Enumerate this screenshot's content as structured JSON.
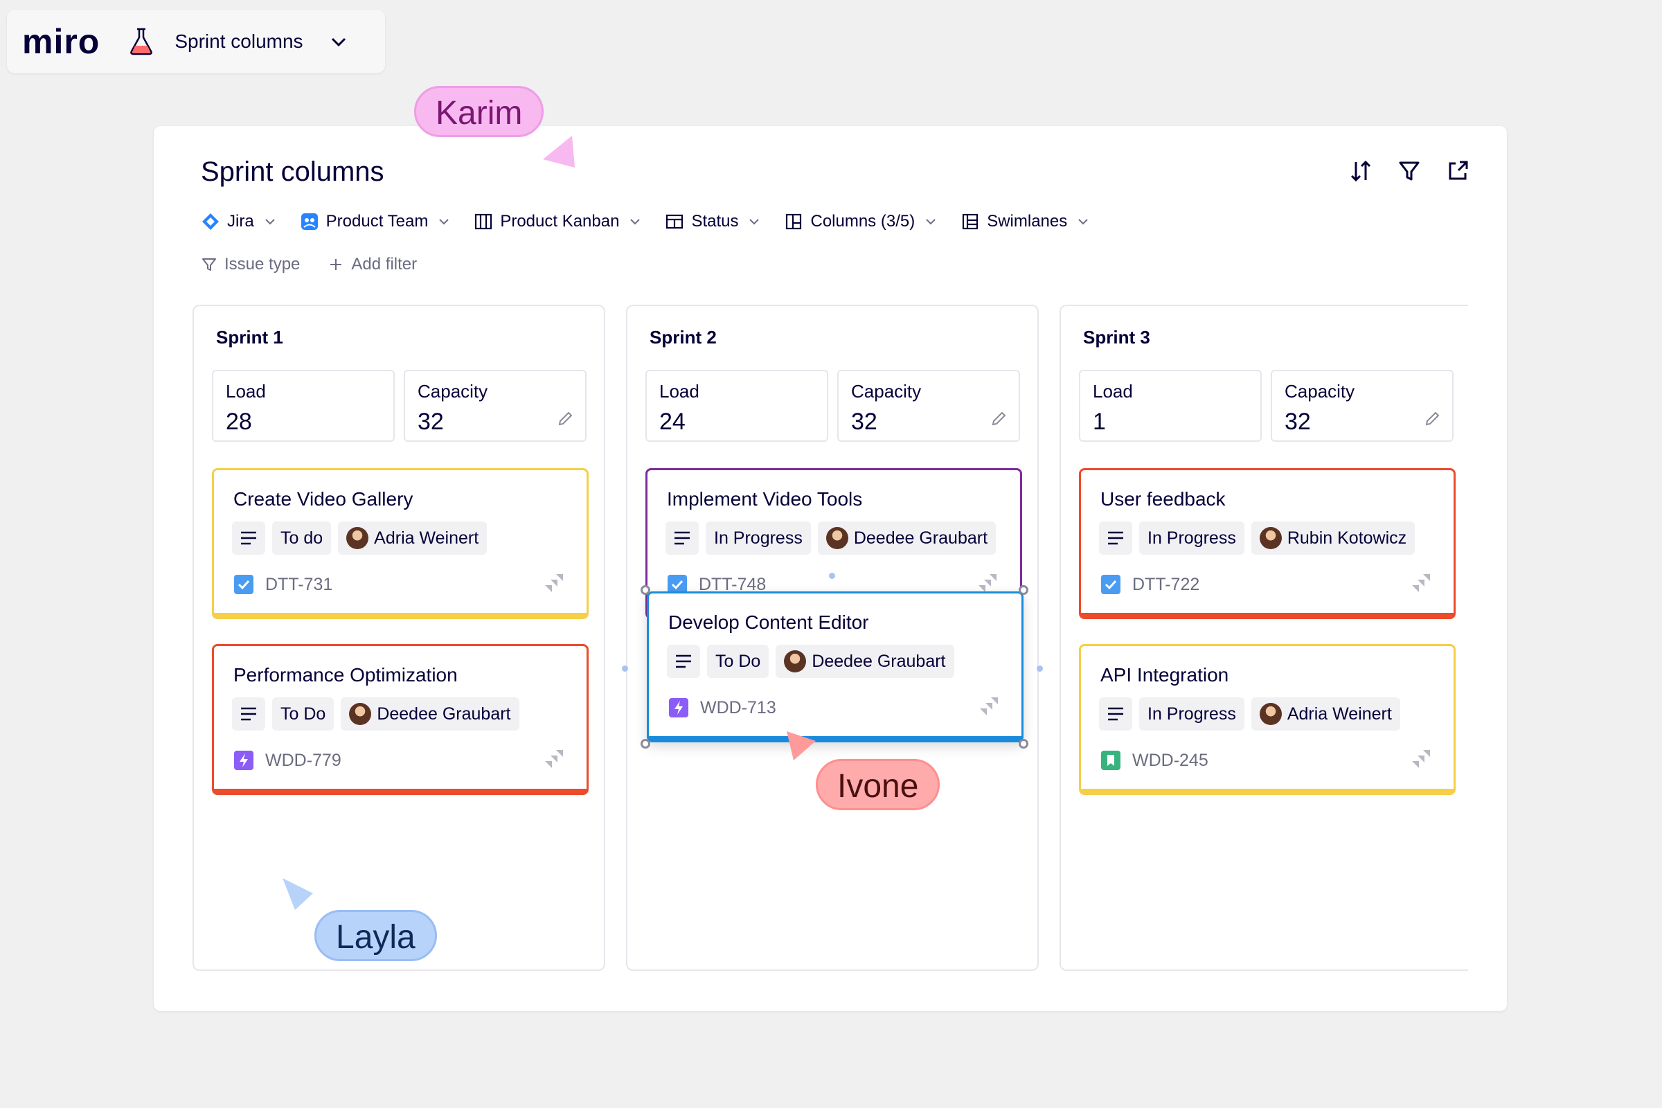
{
  "app": {
    "logo": "miro",
    "board_name": "Sprint columns"
  },
  "panel": {
    "title": "Sprint columns",
    "toolbar": [
      {
        "label": "Jira",
        "icon": "jira-icon"
      },
      {
        "label": "Product Team",
        "icon": "team-icon"
      },
      {
        "label": "Product Kanban",
        "icon": "board-icon"
      },
      {
        "label": "Status",
        "icon": "status-icon"
      },
      {
        "label": "Columns (3/5)",
        "icon": "columns-icon"
      },
      {
        "label": "Swimlanes",
        "icon": "swimlanes-icon"
      }
    ],
    "filters": [
      {
        "label": "Issue type",
        "icon": "filter-icon"
      },
      {
        "label": "Add filter",
        "icon": "plus-icon"
      }
    ]
  },
  "columns": [
    {
      "title": "Sprint 1",
      "load_label": "Load",
      "load": "28",
      "capacity_label": "Capacity",
      "capacity": "32",
      "cards": [
        {
          "title": "Create Video Gallery",
          "status": "To do",
          "assignee": "Adria Weinert",
          "key": "DTT-731",
          "type": "task",
          "color": "#f5cf47"
        },
        {
          "title": "Performance Optimization",
          "status": "To Do",
          "assignee": "Deedee Graubart",
          "key": "WDD-779",
          "type": "epic",
          "color": "#ec4b2c"
        }
      ]
    },
    {
      "title": "Sprint 2",
      "load_label": "Load",
      "load": "24",
      "capacity_label": "Capacity",
      "capacity": "32",
      "cards": [
        {
          "title": "Implement Video Tools",
          "status": "In Progress",
          "assignee": "Deedee Graubart",
          "key": "DTT-748",
          "type": "task",
          "color": "#7e2b9a"
        },
        {
          "title": "Develop Content Editor",
          "status": "To Do",
          "assignee": "Deedee Graubart",
          "key": "WDD-713",
          "type": "epic",
          "color": "#1a8bdc"
        }
      ]
    },
    {
      "title": "Sprint 3",
      "load_label": "Load",
      "load": "1",
      "capacity_label": "Capacity",
      "capacity": "32",
      "cards": [
        {
          "title": "User feedback",
          "status": "In Progress",
          "assignee": "Rubin Kotowicz",
          "key": "DTT-722",
          "type": "task",
          "color": "#ec4b2c"
        },
        {
          "title": "API Integration",
          "status": "In Progress",
          "assignee": "Adria Weinert",
          "key": "WDD-245",
          "type": "story",
          "color": "#f5cf47"
        }
      ]
    }
  ],
  "collaborators": [
    {
      "name": "Karim",
      "color": "#f8b8f0",
      "text_color": "#7a1673"
    },
    {
      "name": "Ivone",
      "color": "#ffabab",
      "text_color": "#4a0f0f"
    },
    {
      "name": "Layla",
      "color": "#b8d3fa",
      "text_color": "#0f2a5a"
    }
  ],
  "colors": {
    "task": "#4a9cf2",
    "epic": "#8b5cf6",
    "story": "#36b37e",
    "selection": "#1a8bdc"
  }
}
